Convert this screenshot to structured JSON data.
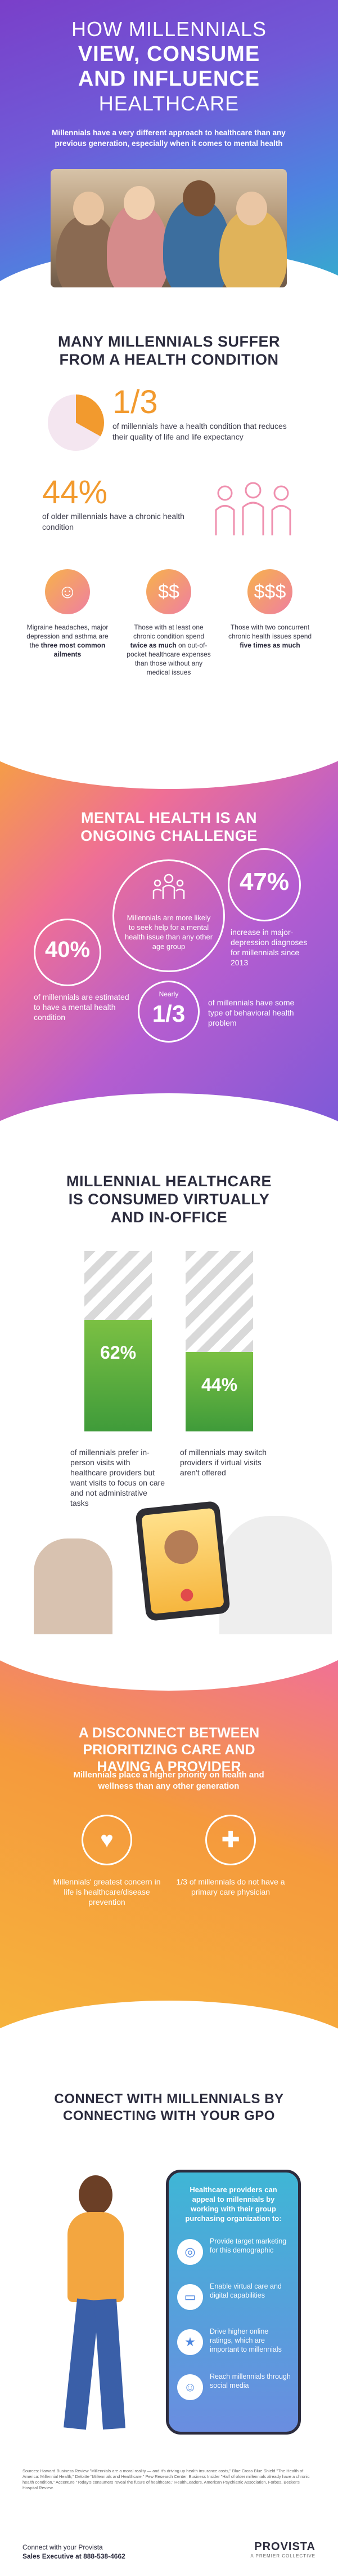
{
  "hero": {
    "title_line1": "HOW MILLENNIALS",
    "title_line2": "VIEW, CONSUME",
    "title_line3": "AND INFLUENCE",
    "title_line4": "HEALTHCARE",
    "subtitle": "Millennials have a very different approach to healthcare than any previous generation, especially when it comes to mental health"
  },
  "condition": {
    "title_line1": "MANY MILLENNIALS SUFFER",
    "title_line2": "FROM A HEALTH CONDITION",
    "stat1_value": "1/3",
    "stat1_text": "of millennials have a health condition that reduces their quality of life and life expectancy",
    "stat1_fraction": 0.33,
    "stat2_value": "44%",
    "stat2_text": "of older millennials have a chronic health condition",
    "icon1_text_a": "Migraine headaches, major depression and asthma are the ",
    "icon1_text_b": "three most common ailments",
    "icon2_text_a": "Those with at least one chronic condition spend ",
    "icon2_text_b": "twice as much",
    "icon2_text_c": " on out-of-pocket healthcare expenses than those without any medical issues",
    "icon3_text_a": "Those with two concurrent chronic health issues spend ",
    "icon3_text_b": "five times as much"
  },
  "mental": {
    "title_line1": "MENTAL HEALTH IS AN",
    "title_line2": "ONGOING CHALLENGE",
    "center_text": "Millennials are more likely to seek help for a mental health issue than any other age group",
    "stat_47": "47%",
    "stat_47_text": "increase in major-depression diagnoses for millennials since 2013",
    "stat_40": "40%",
    "stat_40_text": "of millennials are estimated to have a mental health condition",
    "nearly": "Nearly",
    "stat_13": "1/3",
    "stat_13_text": "of millennials have some type of behavioral health problem"
  },
  "virtual": {
    "title_line1": "MILLENNIAL HEALTHCARE",
    "title_line2": "IS CONSUMED VIRTUALLY",
    "title_line3": "AND IN-OFFICE",
    "bar1_value": "62%",
    "bar1_fraction": 0.62,
    "bar1_text": "of millennials prefer in-person visits with healthcare providers but want visits to focus on care and not administrative tasks",
    "bar2_value": "44%",
    "bar2_fraction": 0.44,
    "bar2_text": "of millennials may switch providers if virtual visits aren't offered"
  },
  "disconnect": {
    "title_line1": "A DISCONNECT BETWEEN",
    "title_line2": "PRIORITIZING CARE AND",
    "title_line3": "HAVING A PROVIDER",
    "subtitle": "Millennials place a higher priority on health and wellness than any other generation",
    "left_text": "Millennials' greatest concern in life is healthcare/disease prevention",
    "right_text": "1/3 of millennials do not have a primary care physician"
  },
  "gpo": {
    "title_line1": "CONNECT WITH MILLENNIALS BY",
    "title_line2": "CONNECTING WITH YOUR GPO",
    "phone_heading": "Healthcare providers can appeal to millennials by working with their group purchasing organization to:",
    "items": [
      {
        "text": "Provide target marketing for this demographic",
        "icon": "target-icon"
      },
      {
        "text": "Enable virtual care and digital capabilities",
        "icon": "laptop-icon"
      },
      {
        "text": "Drive higher online ratings, which are important to millennials",
        "icon": "star-icon"
      },
      {
        "text": "Reach millennials through social media",
        "icon": "social-icon"
      }
    ],
    "sources": "Sources: Harvard Business Review \"Millennials are a moral reality — and it's driving up health insurance costs,\" Blue Cross Blue Shield \"The Health of America: Millennial Health,\" Deloitte \"Millennials and Healthcare,\" Pew Research Center, Business Insider \"Half of older millennials already have a chronic health condition,\" Accenture \"Today's consumers reveal the future of healthcare,\" HealthLeaders, American Psychiatric Association, Forbes, Becker's Hospital Review.",
    "connect_line1": "Connect with your Provista",
    "connect_line2": "Sales Executive at 888-538-4662",
    "logo": "PROVISTA",
    "logo_tag": "A PREMIER COLLECTIVE"
  },
  "colors": {
    "accent_orange": "#f29a2e",
    "accent_purple": "#7a3fc9",
    "accent_blue": "#4b86e0",
    "accent_green": "#5aae3e",
    "accent_pink": "#ef6f95"
  }
}
